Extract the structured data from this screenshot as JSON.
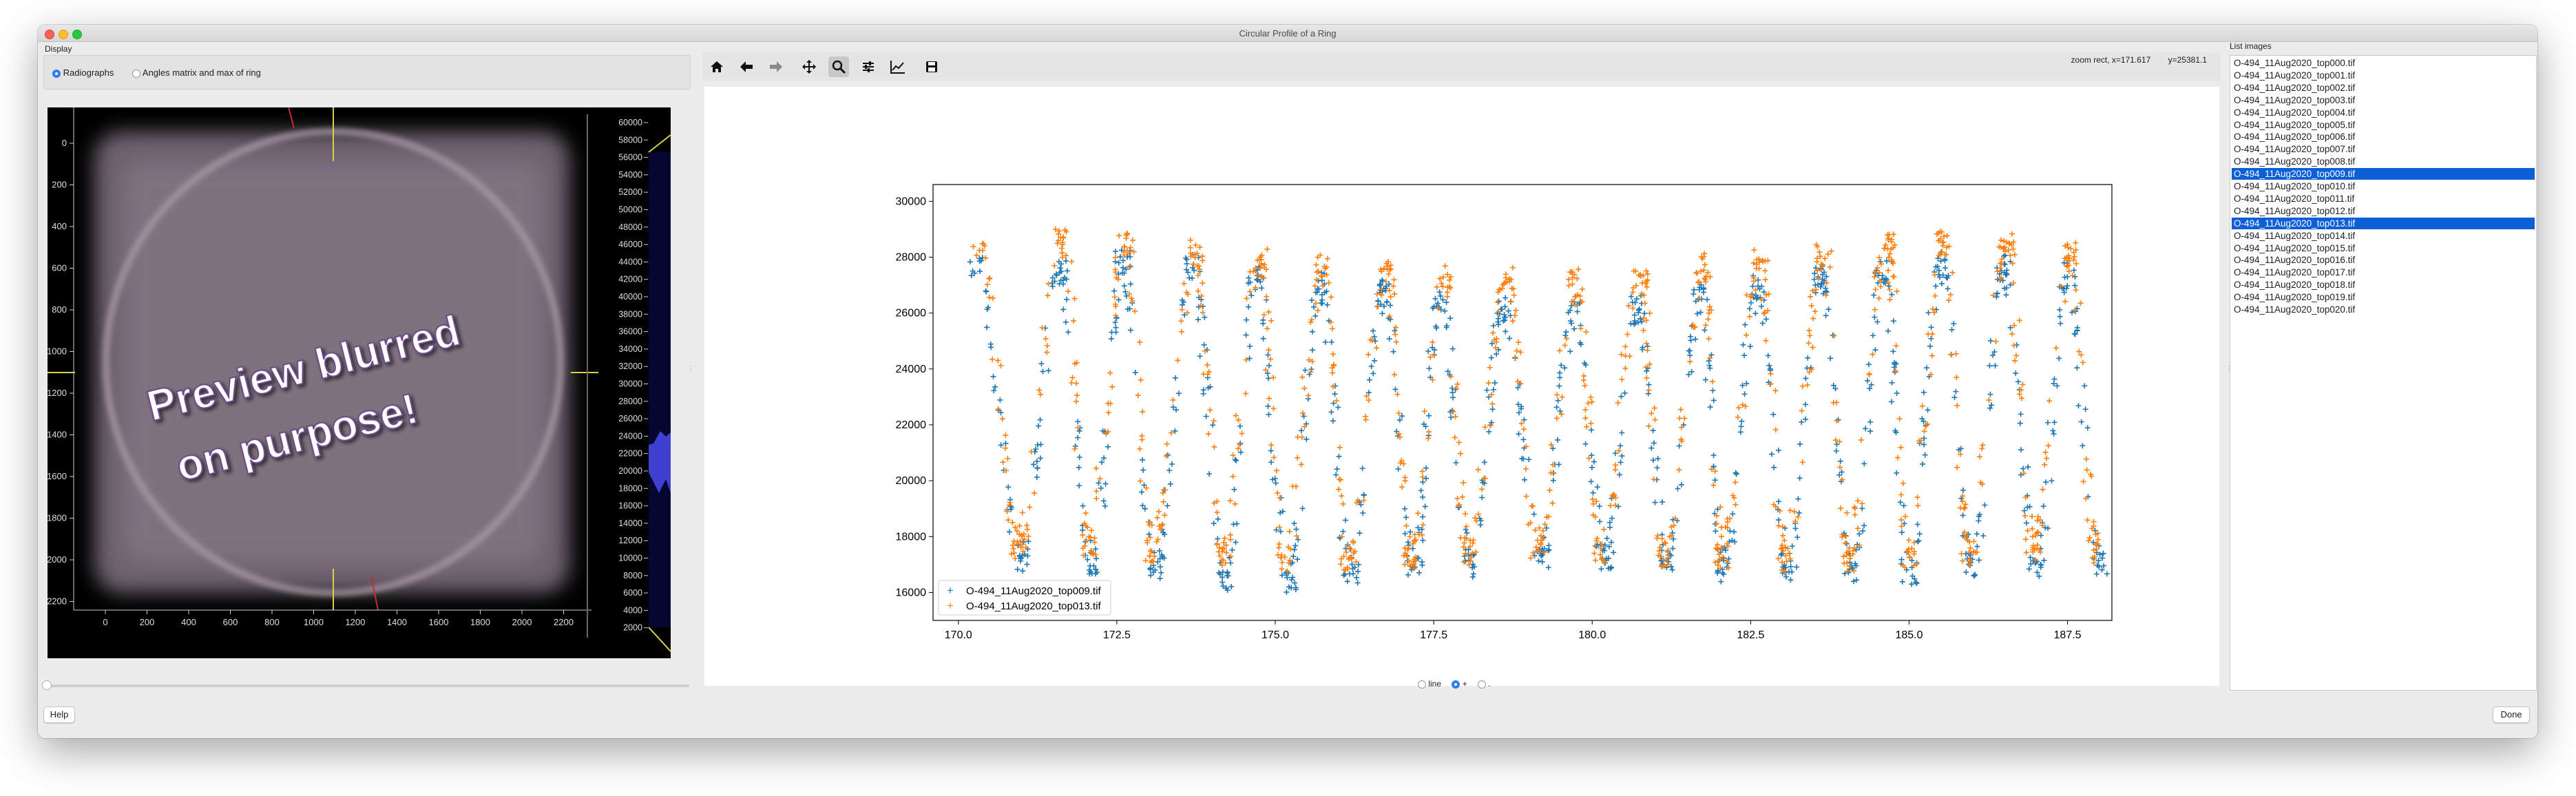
{
  "window": {
    "title": "Circular Profile of a Ring"
  },
  "display": {
    "group_label": "Display",
    "radio_radiographs": "Radiographs",
    "radio_angles": "Angles matrix and max of ring",
    "selected": "Radiographs"
  },
  "preview": {
    "overlay_text_line1": "Preview blurred",
    "overlay_text_line2": "on purpose!",
    "y_ticks": [
      "0",
      "200",
      "400",
      "600",
      "800",
      "1000",
      "1200",
      "1400",
      "1600",
      "1800",
      "2000",
      "2200"
    ],
    "x_ticks": [
      "0",
      "200",
      "400",
      "600",
      "800",
      "1000",
      "1200",
      "1400",
      "1600",
      "1800",
      "2000",
      "2200"
    ],
    "colorbar_ticks": [
      "60000",
      "58000",
      "56000",
      "54000",
      "52000",
      "50000",
      "48000",
      "46000",
      "44000",
      "42000",
      "40000",
      "38000",
      "36000",
      "34000",
      "32000",
      "30000",
      "28000",
      "26000",
      "24000",
      "22000",
      "20000",
      "18000",
      "16000",
      "14000",
      "12000",
      "10000",
      "8000",
      "6000",
      "4000",
      "2000"
    ]
  },
  "toolbar": {
    "home_icon": "home-icon",
    "back_icon": "arrow-left-icon",
    "forward_icon": "arrow-right-icon",
    "pan_icon": "move-icon",
    "zoom_icon": "magnifier-icon",
    "configure_icon": "sliders-icon",
    "edit_icon": "line-chart-icon",
    "save_icon": "floppy-disk-icon",
    "active": "zoom",
    "status_prefix": "zoom rect,",
    "status_x": "x=171.617",
    "status_y": "y=25381.1"
  },
  "chart_data": {
    "type": "scatter",
    "marker": "+",
    "xlim": [
      169.6,
      188.2
    ],
    "ylim": [
      15000,
      30600
    ],
    "x_ticks": [
      170.0,
      172.5,
      175.0,
      177.5,
      180.0,
      182.5,
      185.0,
      187.5
    ],
    "x_tick_labels": [
      "170.0",
      "172.5",
      "175.0",
      "177.5",
      "180.0",
      "182.5",
      "185.0",
      "187.5"
    ],
    "y_ticks": [
      16000,
      18000,
      20000,
      22000,
      24000,
      26000,
      28000,
      30000
    ],
    "y_tick_labels": [
      "16000",
      "18000",
      "20000",
      "22000",
      "24000",
      "26000",
      "28000",
      "30000"
    ],
    "legend_position": "lower-left",
    "series": [
      {
        "name": "O-494_11Aug2020_top009.tif",
        "color": "#1f77b4",
        "crests": [
          [
            170.3,
            27700
          ],
          [
            171.6,
            27500
          ],
          [
            172.6,
            27800
          ],
          [
            173.7,
            27700
          ],
          [
            174.7,
            27300
          ],
          [
            175.7,
            27100
          ],
          [
            176.7,
            26700
          ],
          [
            177.6,
            26400
          ],
          [
            178.6,
            26100
          ],
          [
            179.7,
            26000
          ],
          [
            180.7,
            26200
          ],
          [
            181.7,
            26600
          ],
          [
            182.6,
            26900
          ],
          [
            183.6,
            27200
          ],
          [
            184.6,
            27500
          ],
          [
            185.5,
            27700
          ],
          [
            186.5,
            27600
          ],
          [
            187.5,
            27300
          ]
        ],
        "troughs": [
          [
            171.0,
            17200
          ],
          [
            172.1,
            17100
          ],
          [
            173.1,
            16900
          ],
          [
            174.2,
            16600
          ],
          [
            175.2,
            16500
          ],
          [
            176.2,
            16700
          ],
          [
            177.2,
            16900
          ],
          [
            178.1,
            17100
          ],
          [
            179.2,
            17300
          ],
          [
            180.2,
            17300
          ],
          [
            181.2,
            17100
          ],
          [
            182.1,
            16900
          ],
          [
            183.1,
            16800
          ],
          [
            184.1,
            16700
          ],
          [
            185.0,
            16700
          ],
          [
            186.0,
            16800
          ],
          [
            187.0,
            16900
          ],
          [
            188.0,
            17100
          ]
        ]
      },
      {
        "name": "O-494_11Aug2020_top013.tif",
        "color": "#ff7f0e",
        "crests": [
          [
            170.35,
            28400
          ],
          [
            171.65,
            28600
          ],
          [
            172.65,
            28500
          ],
          [
            173.75,
            28300
          ],
          [
            174.75,
            27900
          ],
          [
            175.75,
            27700
          ],
          [
            176.75,
            27400
          ],
          [
            177.65,
            27300
          ],
          [
            178.65,
            27200
          ],
          [
            179.75,
            27100
          ],
          [
            180.75,
            27300
          ],
          [
            181.75,
            27600
          ],
          [
            182.65,
            27900
          ],
          [
            183.65,
            28100
          ],
          [
            184.65,
            28400
          ],
          [
            185.55,
            28500
          ],
          [
            186.55,
            28400
          ],
          [
            187.55,
            28100
          ]
        ],
        "troughs": [
          [
            170.95,
            17700
          ],
          [
            172.05,
            17600
          ],
          [
            173.05,
            17500
          ],
          [
            174.15,
            17300
          ],
          [
            175.15,
            17200
          ],
          [
            176.15,
            17200
          ],
          [
            177.15,
            17300
          ],
          [
            178.05,
            17500
          ],
          [
            179.15,
            17600
          ],
          [
            180.15,
            17500
          ],
          [
            181.15,
            17400
          ],
          [
            182.05,
            17300
          ],
          [
            183.05,
            17200
          ],
          [
            184.05,
            17200
          ],
          [
            185.0,
            17300
          ],
          [
            185.95,
            17300
          ],
          [
            186.95,
            17400
          ],
          [
            187.95,
            17500
          ]
        ]
      }
    ]
  },
  "plot_style": {
    "line_label": "line",
    "plus_label": "+",
    "dot_label": ".",
    "selected": "+"
  },
  "list": {
    "title": "List images",
    "items": [
      "O-494_11Aug2020_top000.tif",
      "O-494_11Aug2020_top001.tif",
      "O-494_11Aug2020_top002.tif",
      "O-494_11Aug2020_top003.tif",
      "O-494_11Aug2020_top004.tif",
      "O-494_11Aug2020_top005.tif",
      "O-494_11Aug2020_top006.tif",
      "O-494_11Aug2020_top007.tif",
      "O-494_11Aug2020_top008.tif",
      "O-494_11Aug2020_top009.tif",
      "O-494_11Aug2020_top010.tif",
      "O-494_11Aug2020_top011.tif",
      "O-494_11Aug2020_top012.tif",
      "O-494_11Aug2020_top013.tif",
      "O-494_11Aug2020_top014.tif",
      "O-494_11Aug2020_top015.tif",
      "O-494_11Aug2020_top016.tif",
      "O-494_11Aug2020_top017.tif",
      "O-494_11Aug2020_top018.tif",
      "O-494_11Aug2020_top019.tif",
      "O-494_11Aug2020_top020.tif"
    ],
    "selected": [
      "O-494_11Aug2020_top009.tif",
      "O-494_11Aug2020_top013.tif"
    ]
  },
  "buttons": {
    "help": "Help",
    "done": "Done"
  },
  "colors": {
    "accent": "#2c7ef0",
    "selection": "#0d5fd6",
    "series1": "#1f77b4",
    "series2": "#ff7f0e"
  }
}
